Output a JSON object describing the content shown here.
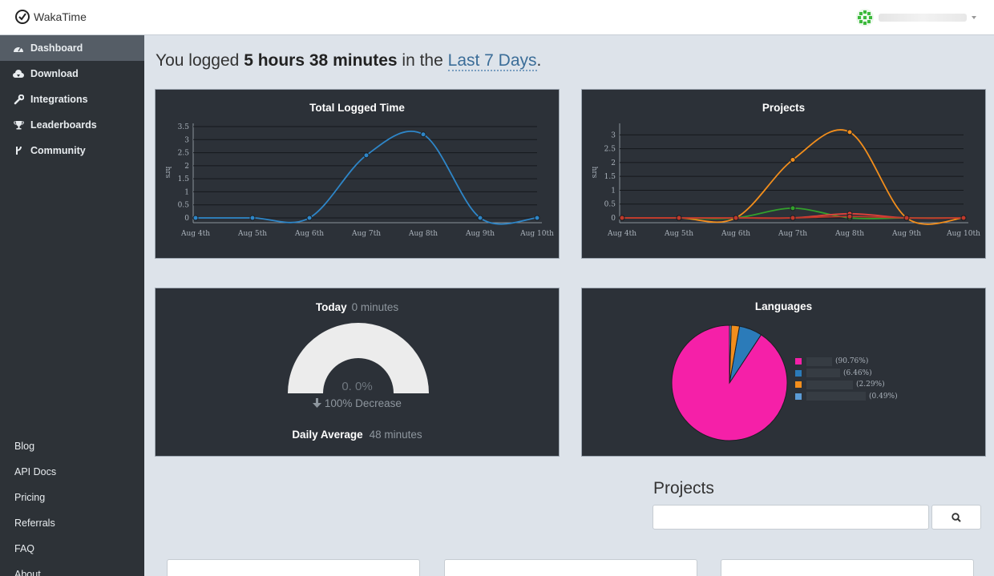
{
  "topbar": {
    "brand": "WakaTime"
  },
  "sidebar": {
    "nav": [
      {
        "label": "Dashboard",
        "icon": "dashboard-icon"
      },
      {
        "label": "Download",
        "icon": "cloud-download-icon"
      },
      {
        "label": "Integrations",
        "icon": "wrench-icon"
      },
      {
        "label": "Leaderboards",
        "icon": "trophy-icon"
      },
      {
        "label": "Community",
        "icon": "code-fork-icon"
      }
    ],
    "links": [
      "Blog",
      "API Docs",
      "Pricing",
      "Referrals",
      "FAQ",
      "About"
    ]
  },
  "headline": {
    "prefix": "You logged",
    "duration": "5 hours 38 minutes",
    "middle": "in the",
    "range": "Last 7 Days",
    "suffix": "."
  },
  "total_time": {
    "title": "Total Logged Time",
    "chart_data": {
      "type": "line",
      "x": [
        "Aug 4th",
        "Aug 5th",
        "Aug 6th",
        "Aug 7th",
        "Aug 8th",
        "Aug 9th",
        "Aug 10th"
      ],
      "yticks": [
        "0",
        "0.5",
        "1",
        "1.5",
        "2",
        "2.5",
        "3",
        "3.5"
      ],
      "ylim": [
        0,
        3.5
      ],
      "ylabel": "hrs",
      "series": [
        {
          "color": "#2e86c8",
          "values": [
            0,
            0,
            0,
            2.4,
            3.2,
            0,
            0
          ]
        }
      ]
    }
  },
  "projects_chart": {
    "title": "Projects",
    "chart_data": {
      "type": "line",
      "x": [
        "Aug 4th",
        "Aug 5th",
        "Aug 6th",
        "Aug 7th",
        "Aug 8th",
        "Aug 9th",
        "Aug 10th"
      ],
      "yticks": [
        "0",
        "0.5",
        "1",
        "1.5",
        "2",
        "2.5",
        "3"
      ],
      "ylim": [
        0,
        3.3
      ],
      "ylabel": "hrs",
      "series": [
        {
          "color": "#f28e1c",
          "values": [
            0,
            0,
            0,
            2.1,
            3.1,
            0,
            0
          ]
        },
        {
          "color": "#33a02c",
          "values": [
            0,
            0,
            0,
            0.35,
            0,
            0,
            0
          ]
        },
        {
          "color": "#e0413a",
          "values": [
            0,
            0,
            0,
            0,
            0.15,
            0,
            0
          ]
        },
        {
          "color": "#c0392b",
          "values": [
            0,
            0,
            0,
            0,
            0.05,
            0,
            0
          ]
        }
      ]
    }
  },
  "today": {
    "label": "Today",
    "value": "0 minutes",
    "percent": "0. 0%",
    "change": "100% Decrease",
    "avg_label": "Daily Average",
    "avg_value": "48 minutes"
  },
  "languages": {
    "title": "Languages",
    "chart_data": {
      "type": "pie",
      "slices": [
        {
          "pct_label": "(90.76%)",
          "value": 90.76,
          "color": "#f520a8"
        },
        {
          "pct_label": "(6.46%)",
          "value": 6.46,
          "color": "#2b7bb9"
        },
        {
          "pct_label": "(2.29%)",
          "value": 2.29,
          "color": "#f28e1c"
        },
        {
          "pct_label": "(0.49%)",
          "value": 0.49,
          "color": "#5b9bd5"
        }
      ]
    }
  },
  "projects_section": {
    "heading": "Projects"
  }
}
